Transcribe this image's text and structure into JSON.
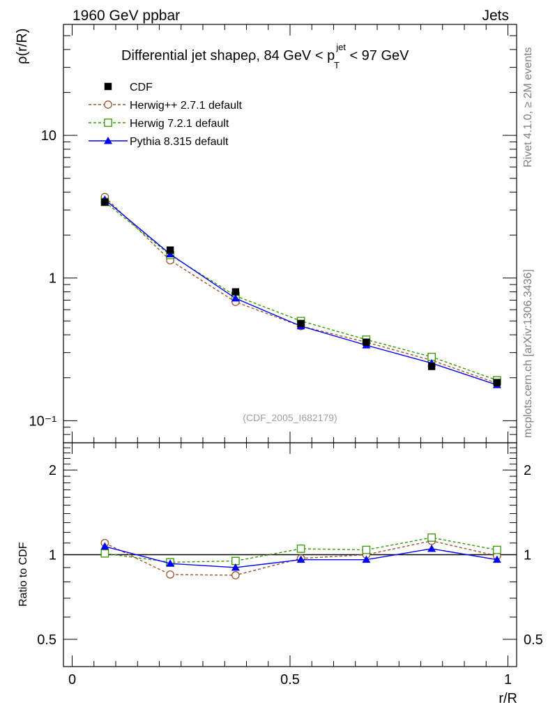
{
  "header": {
    "left": "1960 GeV ppbar",
    "right": "Jets",
    "side_top": "Rivet 4.1.0, ≥ 2M events",
    "side_bottom": "mcplots.cern.ch [arXiv:1306.3436]",
    "watermark": "(CDF_2005_I682179)"
  },
  "title": {
    "prefix": "Differential jet shapeρ, 84 GeV < p",
    "sup": "jet",
    "sub": "T",
    "suffix": " < 97 GeV"
  },
  "colors": {
    "cdf": "#000000",
    "herwigpp": "#a0522d",
    "herwig7": "#339900",
    "pythia": "#0000ff"
  },
  "chart_data": [
    {
      "type": "line",
      "panel": "main",
      "yscale": "log",
      "ylabel": "ρ(r/R)",
      "xlim": [
        -0.02,
        1.02
      ],
      "ylim": [
        0.07,
        60
      ],
      "y_tick_labels": [
        {
          "value": 10,
          "label": "10"
        },
        {
          "value": 1,
          "label": "1"
        },
        {
          "value": 0.1,
          "label": "10⁻¹"
        }
      ],
      "x": [
        0.075,
        0.225,
        0.375,
        0.525,
        0.675,
        0.825,
        0.975
      ],
      "series": [
        {
          "name": "CDF",
          "style": "data",
          "values": [
            3.4,
            1.57,
            0.8,
            0.48,
            0.355,
            0.24,
            0.185
          ]
        },
        {
          "name": "Herwig++ 2.7.1 default",
          "style": "herwigpp",
          "values": [
            3.7,
            1.33,
            0.68,
            0.46,
            0.355,
            0.265,
            0.183
          ]
        },
        {
          "name": "Herwig 7.2.1 default",
          "style": "herwig7",
          "values": [
            3.42,
            1.45,
            0.75,
            0.5,
            0.37,
            0.28,
            0.192
          ]
        },
        {
          "name": "Pythia 8.315 default",
          "style": "pythia",
          "values": [
            3.55,
            1.47,
            0.72,
            0.46,
            0.338,
            0.253,
            0.178
          ]
        }
      ]
    },
    {
      "type": "line",
      "panel": "ratio",
      "yscale": "log",
      "ylabel": "Ratio to CDF",
      "xlabel": "r/R",
      "xlim": [
        -0.02,
        1.02
      ],
      "ylim": [
        0.4,
        2.5
      ],
      "reference_line": 1,
      "y_tick_labels": [
        {
          "value": 2,
          "label": "2"
        },
        {
          "value": 1,
          "label": "1"
        },
        {
          "value": 0.5,
          "label": "0.5"
        }
      ],
      "x_tick_labels": [
        {
          "value": 0,
          "label": "0"
        },
        {
          "value": 0.5,
          "label": "0.5"
        },
        {
          "value": 1,
          "label": "1"
        }
      ],
      "x": [
        0.075,
        0.225,
        0.375,
        0.525,
        0.675,
        0.825,
        0.975
      ],
      "series": [
        {
          "name": "Herwig++ 2.7.1 default",
          "style": "herwigpp",
          "values": [
            1.1,
            0.85,
            0.845,
            0.97,
            1.0,
            1.12,
            0.99
          ]
        },
        {
          "name": "Herwig 7.2.1 default",
          "style": "herwig7",
          "values": [
            1.01,
            0.94,
            0.95,
            1.05,
            1.04,
            1.15,
            1.04
          ]
        },
        {
          "name": "Pythia 8.315 default",
          "style": "pythia",
          "values": [
            1.07,
            0.93,
            0.9,
            0.96,
            0.96,
            1.05,
            0.96
          ]
        }
      ]
    }
  ]
}
